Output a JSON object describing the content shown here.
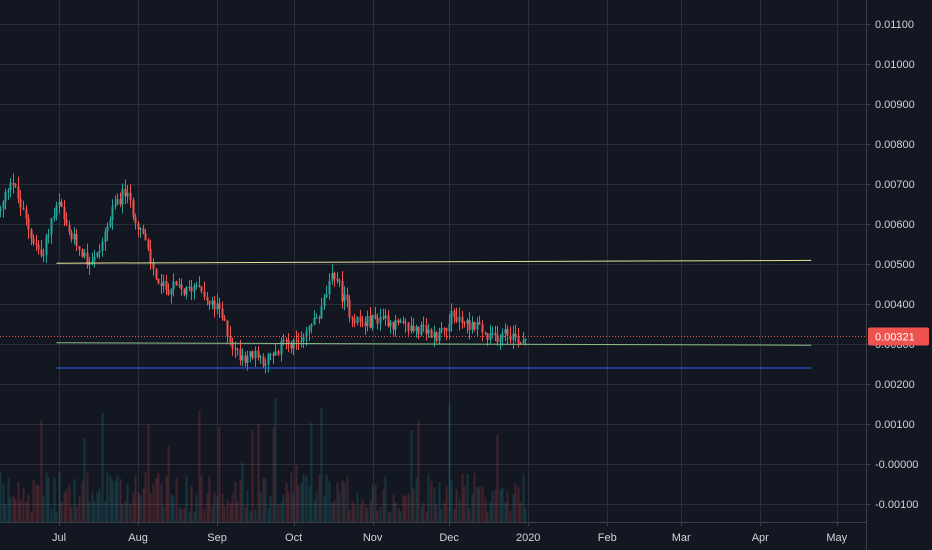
{
  "chart_data": {
    "type": "candlestick",
    "x_ticks": [
      "Jul",
      "Aug",
      "Sep",
      "Oct",
      "Nov",
      "Dec",
      "2020",
      "Feb",
      "Mar",
      "Apr",
      "May"
    ],
    "y_ticks": [
      "0.01100",
      "0.01000",
      "0.00900",
      "0.00800",
      "0.00700",
      "0.00600",
      "0.00500",
      "0.00400",
      "0.00300",
      "0.00200",
      "0.00100",
      "-0.00000",
      "-0.00100"
    ],
    "y_tick_values": [
      0.011,
      0.01,
      0.009,
      0.008,
      0.007,
      0.006,
      0.005,
      0.004,
      0.003,
      0.002,
      0.001,
      0.0,
      -0.001
    ],
    "ylim": [
      -0.00115,
      0.0115
    ],
    "last_price": 0.00321,
    "last_price_label": "0.00321",
    "grid": true,
    "colors": {
      "background": "#131722",
      "grid": "#2a2e39",
      "up": "#26a69a",
      "down": "#ef5350",
      "upper_line": "#e8e49a",
      "middle_line": "#8fbf88",
      "lower_line": "#2962ff",
      "price_line": "#ef5350"
    },
    "horizontal_lines": [
      {
        "name": "",
        "start": "2019-06-30",
        "end": "2020-04-21",
        "start_value": 0.00502,
        "end_value": 0.00509,
        "color": "#e8e49a"
      },
      {
        "name": "",
        "start": "2019-06-30",
        "end": "2020-04-21",
        "start_value": 0.00303,
        "end_value": 0.00297,
        "color": "#8fbf88"
      },
      {
        "name": "",
        "start": "2019-06-30",
        "end": "2020-04-21",
        "start_value": 0.0024,
        "end_value": 0.0024,
        "color": "#2962ff"
      }
    ],
    "price_keypoints": [
      [
        "2019-06-01",
        0.007
      ],
      [
        "2019-06-05",
        0.0068
      ],
      [
        "2019-06-08",
        0.0063
      ],
      [
        "2019-06-12",
        0.0072
      ],
      [
        "2019-06-16",
        0.0064
      ],
      [
        "2019-06-20",
        0.0057
      ],
      [
        "2019-06-24",
        0.0052
      ],
      [
        "2019-06-28",
        0.0061
      ],
      [
        "2019-07-01",
        0.0065
      ],
      [
        "2019-07-04",
        0.0058
      ],
      [
        "2019-07-08",
        0.0055
      ],
      [
        "2019-07-12",
        0.0051
      ],
      [
        "2019-07-16",
        0.0052
      ],
      [
        "2019-07-20",
        0.006
      ],
      [
        "2019-07-24",
        0.0066
      ],
      [
        "2019-07-27",
        0.0068
      ],
      [
        "2019-07-30",
        0.0063
      ],
      [
        "2019-08-03",
        0.0057
      ],
      [
        "2019-08-06",
        0.005
      ],
      [
        "2019-08-10",
        0.0044
      ],
      [
        "2019-08-15",
        0.0044
      ],
      [
        "2019-08-20",
        0.0043
      ],
      [
        "2019-08-25",
        0.0046
      ],
      [
        "2019-08-28",
        0.004
      ],
      [
        "2019-09-01",
        0.0039
      ],
      [
        "2019-09-05",
        0.0033
      ],
      [
        "2019-09-08",
        0.0028
      ],
      [
        "2019-09-12",
        0.0027
      ],
      [
        "2019-09-16",
        0.0027
      ],
      [
        "2019-09-20",
        0.0026
      ],
      [
        "2019-09-24",
        0.0027
      ],
      [
        "2019-09-28",
        0.0032
      ],
      [
        "2019-10-02",
        0.0029
      ],
      [
        "2019-10-05",
        0.0033
      ],
      [
        "2019-10-08",
        0.0035
      ],
      [
        "2019-10-11",
        0.0037
      ],
      [
        "2019-10-14",
        0.0043
      ],
      [
        "2019-10-17",
        0.0048
      ],
      [
        "2019-10-20",
        0.0042
      ],
      [
        "2019-10-24",
        0.0037
      ],
      [
        "2019-10-28",
        0.0035
      ],
      [
        "2019-11-01",
        0.0036
      ],
      [
        "2019-11-05",
        0.0037
      ],
      [
        "2019-11-09",
        0.0035
      ],
      [
        "2019-11-13",
        0.0034
      ],
      [
        "2019-11-17",
        0.0034
      ],
      [
        "2019-11-21",
        0.0033
      ],
      [
        "2019-11-25",
        0.0032
      ],
      [
        "2019-11-29",
        0.0034
      ],
      [
        "2019-12-02",
        0.0037
      ],
      [
        "2019-12-05",
        0.0036
      ],
      [
        "2019-12-08",
        0.0035
      ],
      [
        "2019-12-12",
        0.0035
      ],
      [
        "2019-12-16",
        0.0031
      ],
      [
        "2019-12-20",
        0.0032
      ],
      [
        "2019-12-23",
        0.0034
      ],
      [
        "2019-12-26",
        0.0032
      ],
      [
        "2019-12-29",
        0.0031
      ],
      [
        "2020-01-01",
        0.00321
      ]
    ]
  }
}
